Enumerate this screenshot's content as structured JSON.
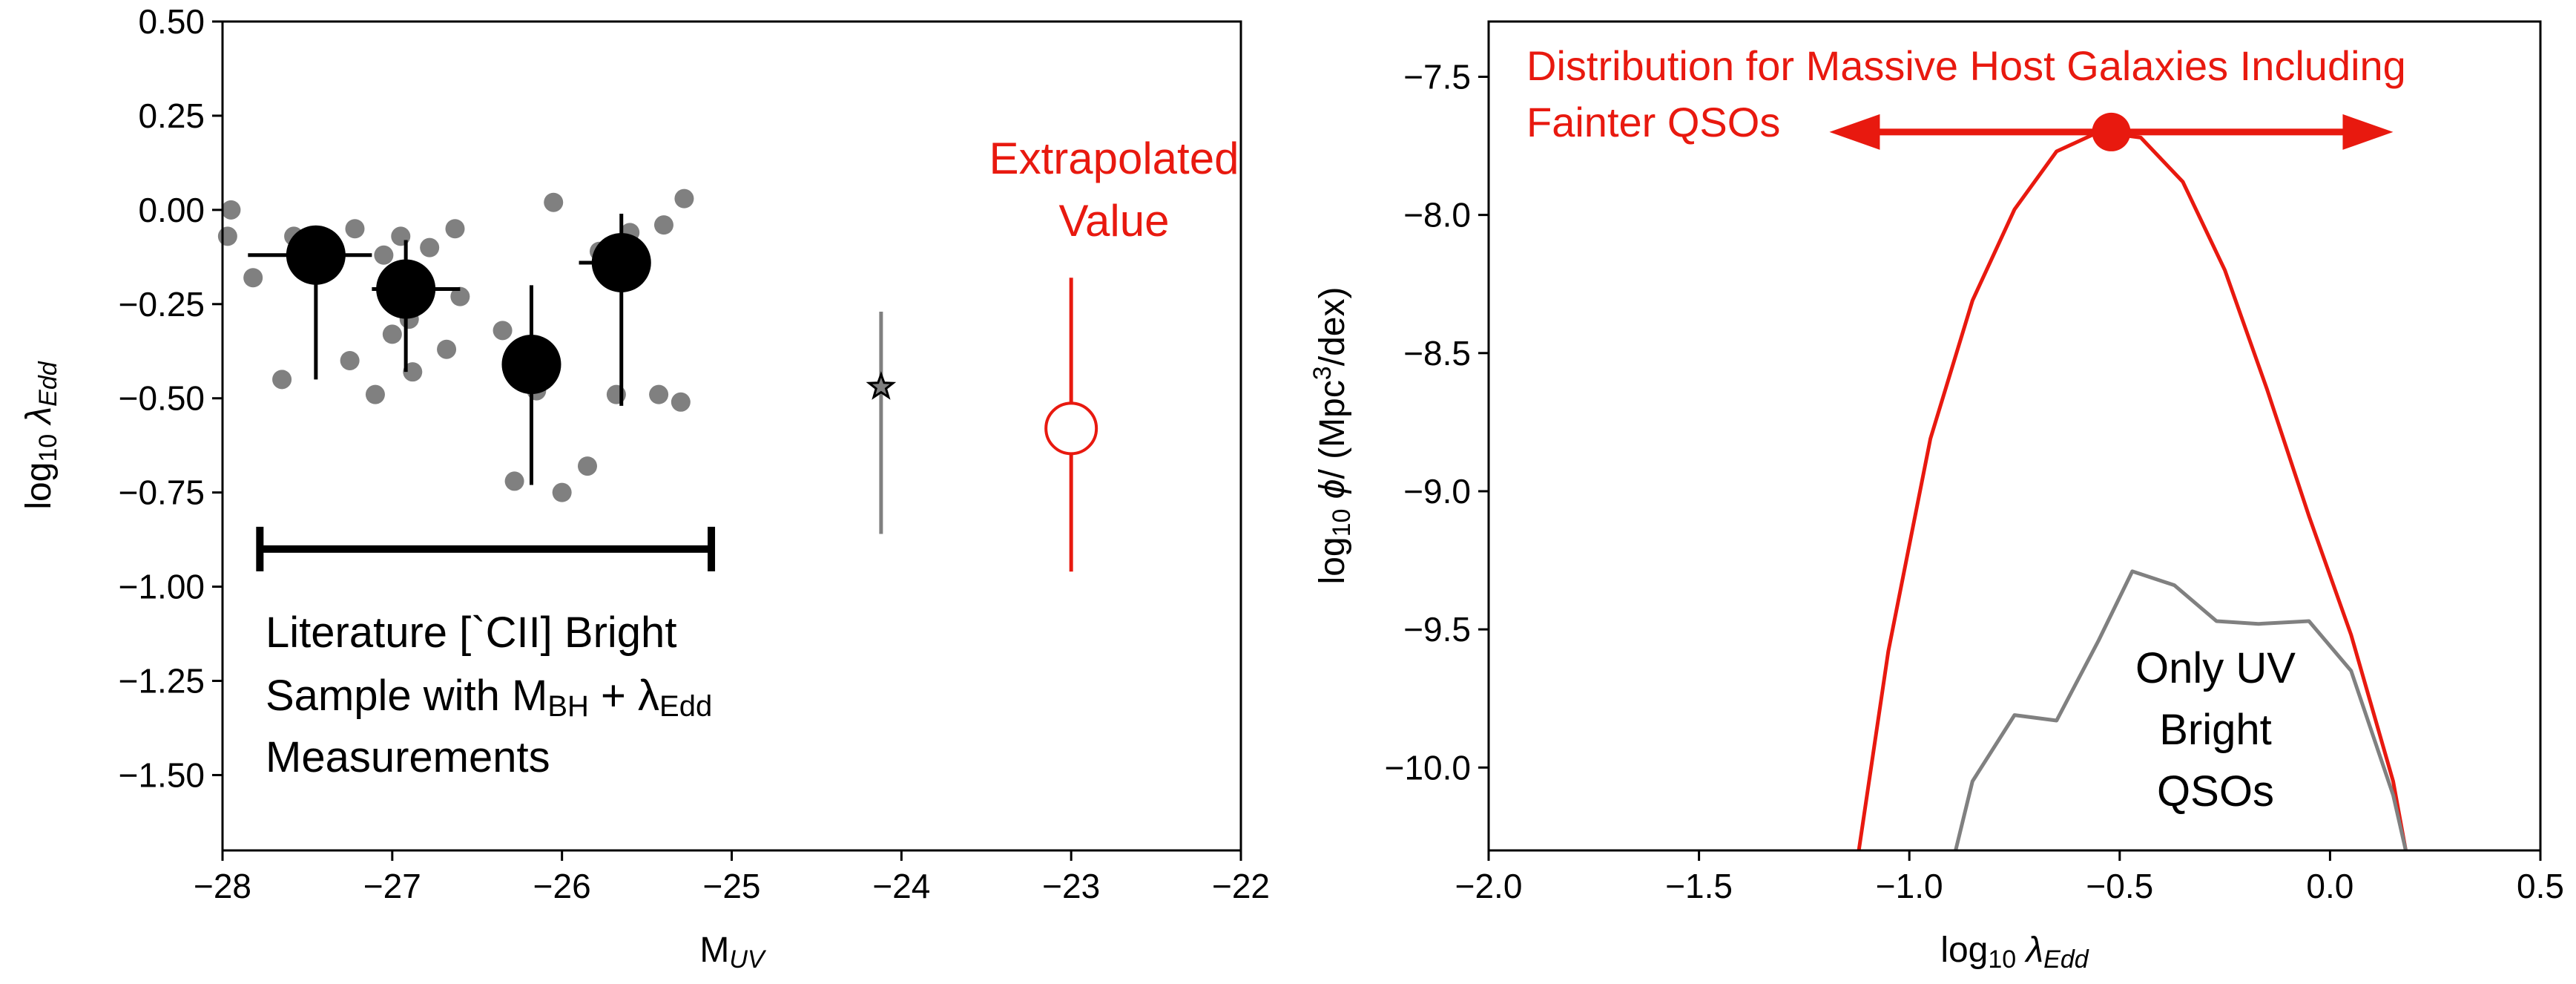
{
  "chart_data": [
    {
      "type": "scatter",
      "xlabel": "M",
      "xlabel_sub": "UV",
      "ylabel": "log",
      "ylabel_sub": "10",
      "ylabel_sym": "λ",
      "ylabel_sym_sub": "Edd",
      "xlim": [
        -28,
        -22
      ],
      "ylim": [
        -1.7,
        0.5
      ],
      "xticks": [
        -28,
        -27,
        -26,
        -25,
        -24,
        -23,
        -22
      ],
      "xtick_labels": [
        "−28",
        "−27",
        "−26",
        "−25",
        "−24",
        "−23",
        "−22"
      ],
      "yticks": [
        0.5,
        0.25,
        0.0,
        -0.25,
        -0.5,
        -0.75,
        -1.0,
        -1.25,
        -1.5
      ],
      "ytick_labels": [
        "0.50",
        "0.25",
        "0.00",
        "−0.25",
        "−0.50",
        "−0.75",
        "−1.00",
        "−1.25",
        "−1.50"
      ],
      "colors": {
        "gray": "#808080",
        "black": "#000000",
        "red": "#e8190f"
      },
      "series": [
        {
          "kind": "individual-points",
          "points": [
            {
              "x": -27.97,
              "y": -0.07
            },
            {
              "x": -27.95,
              "y": 0.0
            },
            {
              "x": -27.82,
              "y": -0.18
            },
            {
              "x": -27.65,
              "y": -0.45
            },
            {
              "x": -27.58,
              "y": -0.07
            },
            {
              "x": -27.22,
              "y": -0.05
            },
            {
              "x": -27.25,
              "y": -0.4
            },
            {
              "x": -27.1,
              "y": -0.49
            },
            {
              "x": -27.05,
              "y": -0.12
            },
            {
              "x": -27.0,
              "y": -0.33
            },
            {
              "x": -26.95,
              "y": -0.07
            },
            {
              "x": -26.9,
              "y": -0.29
            },
            {
              "x": -26.88,
              "y": -0.43
            },
            {
              "x": -26.78,
              "y": -0.1
            },
            {
              "x": -26.68,
              "y": -0.37
            },
            {
              "x": -26.63,
              "y": -0.05
            },
            {
              "x": -26.6,
              "y": -0.23
            },
            {
              "x": -26.35,
              "y": -0.32
            },
            {
              "x": -26.28,
              "y": -0.72
            },
            {
              "x": -26.15,
              "y": -0.48
            },
            {
              "x": -26.05,
              "y": 0.02
            },
            {
              "x": -26.0,
              "y": -0.75
            },
            {
              "x": -25.85,
              "y": -0.68
            },
            {
              "x": -25.78,
              "y": -0.11
            },
            {
              "x": -25.6,
              "y": -0.06
            },
            {
              "x": -25.68,
              "y": -0.49
            },
            {
              "x": -25.43,
              "y": -0.49
            },
            {
              "x": -25.4,
              "y": -0.04
            },
            {
              "x": -25.3,
              "y": -0.51
            },
            {
              "x": -25.28,
              "y": 0.03
            }
          ]
        },
        {
          "kind": "binned-means",
          "points": [
            {
              "x": -27.45,
              "y": -0.12,
              "xlo": -27.85,
              "xhi": -27.12,
              "ylo": -0.45,
              "yhi": -0.12
            },
            {
              "x": -26.92,
              "y": -0.21,
              "xlo": -27.12,
              "xhi": -26.6,
              "ylo": -0.43,
              "yhi": -0.08
            },
            {
              "x": -26.18,
              "y": -0.41,
              "xlo": -26.18,
              "xhi": -26.18,
              "ylo": -0.73,
              "yhi": -0.2
            },
            {
              "x": -25.65,
              "y": -0.14,
              "xlo": -25.9,
              "xhi": -25.65,
              "ylo": -0.52,
              "yhi": -0.01
            }
          ]
        },
        {
          "kind": "star",
          "points": [
            {
              "x": -24.12,
              "y": -0.47,
              "ylo": -0.86,
              "yhi": -0.27
            }
          ]
        },
        {
          "kind": "extrapolated",
          "points": [
            {
              "x": -23.0,
              "y": -0.58,
              "ylo": -0.96,
              "yhi": -0.18
            }
          ]
        }
      ],
      "range_bar": {
        "x1": -27.78,
        "x2": -25.12,
        "y": -0.9
      },
      "annotations": {
        "extrapolated_line1": "Extrapolated",
        "extrapolated_line2": "Value",
        "literature_line1": "Literature [`CII] Bright",
        "literature_line2_a": "Sample with M",
        "literature_line2_bh": "BH",
        "literature_line2_plus": " + λ",
        "literature_line2_edd": "Edd",
        "literature_line3": "Measurements"
      }
    },
    {
      "type": "line",
      "xlabel": "log",
      "xlabel_sub": "10",
      "xlabel_sym": "λ",
      "xlabel_sym_sub": "Edd",
      "ylabel": "log",
      "ylabel_sub": "10",
      "ylabel_sym": "ϕ",
      "ylabel_unit": "/ (Mpc",
      "ylabel_unit_sup": "3",
      "ylabel_unit_end": "/dex)",
      "xlim": [
        -2.0,
        0.5
      ],
      "ylim": [
        -10.3,
        -7.3
      ],
      "xticks": [
        -2.0,
        -1.5,
        -1.0,
        -0.5,
        0.0,
        0.5
      ],
      "xtick_labels": [
        "−2.0",
        "−1.5",
        "−1.0",
        "−0.5",
        "0.0",
        "0.5"
      ],
      "yticks": [
        -7.5,
        -8.0,
        -8.5,
        -9.0,
        -9.5,
        -10.0
      ],
      "ytick_labels": [
        "−7.5",
        "−8.0",
        "−8.5",
        "−9.0",
        "−9.5",
        "−10.0"
      ],
      "colors": {
        "massive": "#e8190f",
        "uv_bright": "#808080",
        "marker": "#e8190f"
      },
      "series": [
        {
          "key": "massive",
          "x": [
            -1.12,
            -1.05,
            -0.95,
            -0.85,
            -0.75,
            -0.65,
            -0.55,
            -0.45,
            -0.35,
            -0.25,
            -0.15,
            -0.05,
            0.05,
            0.15,
            0.18
          ],
          "y": [
            -10.3,
            -9.58,
            -8.81,
            -8.31,
            -7.98,
            -7.77,
            -7.7,
            -7.72,
            -7.88,
            -8.2,
            -8.63,
            -9.09,
            -9.52,
            -10.05,
            -10.3
          ]
        },
        {
          "key": "uv_bright",
          "x": [
            -0.89,
            -0.85,
            -0.75,
            -0.65,
            -0.55,
            -0.47,
            -0.37,
            -0.27,
            -0.17,
            -0.05,
            0.05,
            0.15,
            0.18
          ],
          "y": [
            -10.3,
            -10.05,
            -9.81,
            -9.83,
            -9.54,
            -9.29,
            -9.34,
            -9.47,
            -9.48,
            -9.47,
            -9.65,
            -10.1,
            -10.3
          ]
        }
      ],
      "marker": {
        "x": -0.52,
        "y": -7.7,
        "arrow_left": -1.19,
        "arrow_right": 0.15
      },
      "annotations": {
        "massive_line1": "Distribution for Massive Host Galaxies Including",
        "massive_line2": "Fainter QSOs",
        "uv_line1": "Only UV",
        "uv_line2": "Bright",
        "uv_line3": "QSOs"
      }
    }
  ]
}
